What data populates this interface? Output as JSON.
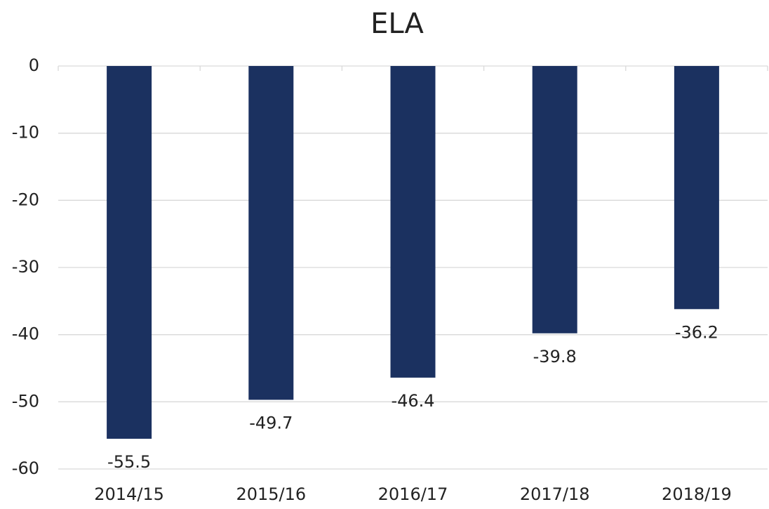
{
  "chart_data": {
    "type": "bar",
    "title": "ELA",
    "categories": [
      "2014/15",
      "2015/16",
      "2016/17",
      "2017/18",
      "2018/19"
    ],
    "values": [
      -55.5,
      -49.7,
      -46.4,
      -39.8,
      -36.2
    ],
    "color": "#1b3160",
    "ylim": [
      -60,
      0
    ],
    "yticks": [
      0,
      -10,
      -20,
      -30,
      -40,
      -50,
      -60
    ],
    "grid": true
  }
}
